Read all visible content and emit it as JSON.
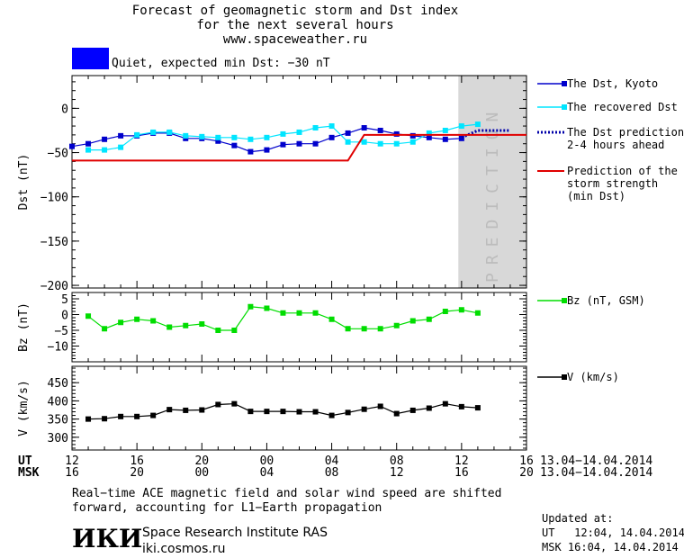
{
  "header": {
    "title_line1": "Forecast of geomagnetic storm and Dst index",
    "title_line2": "for the next several hours",
    "website": "www.spaceweather.ru",
    "status_text": "Quiet, expected min Dst: −30 nT",
    "status_color": "#0000ff"
  },
  "chart_data": [
    {
      "type": "line",
      "ylabel": "Dst (nT)",
      "ylim": [
        -203,
        37
      ],
      "yticks": [
        0,
        -50,
        -100,
        -150,
        -200
      ],
      "x_unit": "hours since 12 UT 13.04.2014",
      "xlim": [
        0,
        28
      ],
      "prediction_band": {
        "x": [
          23.8,
          28
        ],
        "label": "PREDICTION",
        "color": "#d8d8d8"
      },
      "series": [
        {
          "name": "The Dst, Kyoto",
          "color": "#0000cc",
          "marker": "square",
          "x": [
            0,
            1,
            2,
            3,
            4,
            5,
            6,
            7,
            8,
            9,
            10,
            11,
            12,
            13,
            14,
            15,
            16,
            17,
            18,
            19,
            20,
            21,
            22,
            23,
            24
          ],
          "y": [
            -43,
            -40,
            -35,
            -31,
            -31,
            -28,
            -28,
            -34,
            -34,
            -37,
            -42,
            -49,
            -47,
            -41,
            -40,
            -40,
            -33,
            -28,
            -22,
            -25,
            -29,
            -31,
            -33,
            -35,
            -34
          ]
        },
        {
          "name": "The recovered Dst",
          "color": "#00e5ff",
          "marker": "square",
          "x": [
            1,
            2,
            3,
            4,
            5,
            6,
            7,
            8,
            9,
            10,
            11,
            12,
            13,
            14,
            15,
            16,
            17,
            18,
            19,
            20,
            21,
            22,
            23,
            24,
            25
          ],
          "y": [
            -47,
            -47,
            -44,
            -30,
            -27,
            -27,
            -31,
            -32,
            -33,
            -33,
            -35,
            -33,
            -29,
            -27,
            -22,
            -20,
            -38,
            -38,
            -40,
            -40,
            -38,
            -28,
            -25,
            -20,
            -18
          ]
        },
        {
          "name": "The Dst prediction",
          "name_line2": "2-4 hours ahead",
          "color": "#0000aa",
          "dash": true,
          "x": [
            24,
            25,
            26,
            27
          ],
          "y": [
            -33,
            -25,
            -25,
            -25
          ]
        },
        {
          "name": "Prediction of the",
          "name_line2": "storm strength",
          "name_line3": "(min Dst)",
          "color": "#e00000",
          "step": true,
          "x": [
            0,
            17,
            18,
            28
          ],
          "y": [
            -59,
            -59,
            -30,
            -30
          ]
        }
      ]
    },
    {
      "type": "line",
      "ylabel": "Bz (nT)",
      "ylim": [
        -15,
        7
      ],
      "yticks": [
        5,
        0,
        -5,
        -10
      ],
      "series": [
        {
          "name": "Bz (nT, GSM)",
          "color": "#00dd00",
          "marker": "square",
          "x": [
            1,
            2,
            3,
            4,
            5,
            6,
            7,
            8,
            9,
            10,
            11,
            12,
            13,
            14,
            15,
            16,
            17,
            18,
            19,
            20,
            21,
            22,
            23,
            24,
            25
          ],
          "y": [
            -0.5,
            -4.5,
            -2.5,
            -1.5,
            -2,
            -4,
            -3.5,
            -3,
            -5,
            -5,
            2.5,
            2,
            0.5,
            0.5,
            0.5,
            -1.5,
            -4.5,
            -4.5,
            -4.5,
            -3.5,
            -2,
            -1.5,
            1,
            1.5,
            0.5
          ]
        }
      ]
    },
    {
      "type": "line",
      "ylabel": "V (km/s)",
      "ylim": [
        265,
        495
      ],
      "yticks": [
        450,
        400,
        350,
        300
      ],
      "series": [
        {
          "name": "V (km/s)",
          "color": "#000000",
          "marker": "square",
          "x": [
            1,
            2,
            3,
            4,
            5,
            6,
            7,
            8,
            9,
            10,
            11,
            12,
            13,
            14,
            15,
            16,
            17,
            18,
            19,
            20,
            21,
            22,
            23,
            24,
            25
          ],
          "y": [
            350,
            351,
            357,
            357,
            360,
            376,
            374,
            375,
            390,
            392,
            371,
            371,
            371,
            370,
            370,
            360,
            368,
            377,
            385,
            365,
            374,
            380,
            392,
            384,
            381
          ]
        }
      ]
    }
  ],
  "xaxis": {
    "ut_label": "UT",
    "msk_label": "MSK",
    "ut_ticks": [
      "12",
      "16",
      "20",
      "00",
      "04",
      "08",
      "12",
      "16"
    ],
    "msk_ticks": [
      "16",
      "20",
      "00",
      "04",
      "08",
      "12",
      "16",
      "20"
    ],
    "date_range_ut": "13.04−14.04.2014",
    "date_range_msk": "13.04−14.04.2014"
  },
  "footer": {
    "note_line1": "Real−time ACE magnetic field and solar wind speed are shifted",
    "note_line2": "forward, accounting for L1−Earth propagation",
    "logo_text": "ИКИ",
    "institute": "Space Research Institute RAS",
    "site": "iki.cosmos.ru",
    "updated_label": "Updated at:",
    "updated_ut": "UT   12:04, 14.04.2014",
    "updated_msk": "MSK 16:04, 14.04.2014"
  }
}
